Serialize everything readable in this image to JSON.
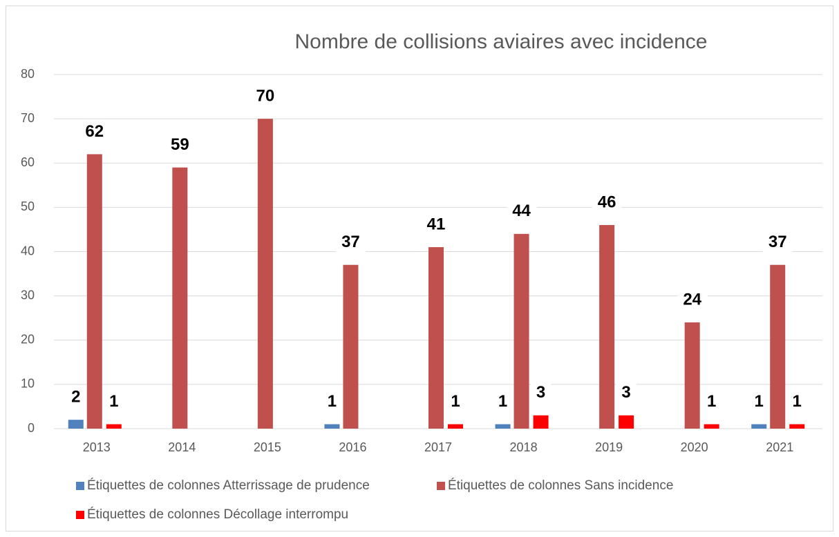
{
  "chart_data": {
    "type": "bar",
    "title": "Nombre de collisions aviaires avec incidence",
    "categories": [
      "2013",
      "2014",
      "2015",
      "2016",
      "2017",
      "2018",
      "2019",
      "2020",
      "2021"
    ],
    "series": [
      {
        "name": "Étiquettes de colonnes Atterrissage de prudence",
        "color": "#4f81bd",
        "values": [
          2,
          null,
          null,
          1,
          null,
          1,
          null,
          null,
          1
        ]
      },
      {
        "name": "Étiquettes de colonnes Sans incidence",
        "color": "#c0504d",
        "values": [
          62,
          59,
          70,
          37,
          41,
          44,
          46,
          24,
          37
        ]
      },
      {
        "name": "Étiquettes de colonnes Décollage interrompu",
        "color": "#ff0000",
        "values": [
          1,
          null,
          null,
          null,
          1,
          3,
          3,
          1,
          1
        ]
      }
    ],
    "ylim": [
      0,
      80
    ],
    "yticks": [
      0,
      10,
      20,
      30,
      40,
      50,
      60,
      70,
      80
    ],
    "grid": true
  }
}
